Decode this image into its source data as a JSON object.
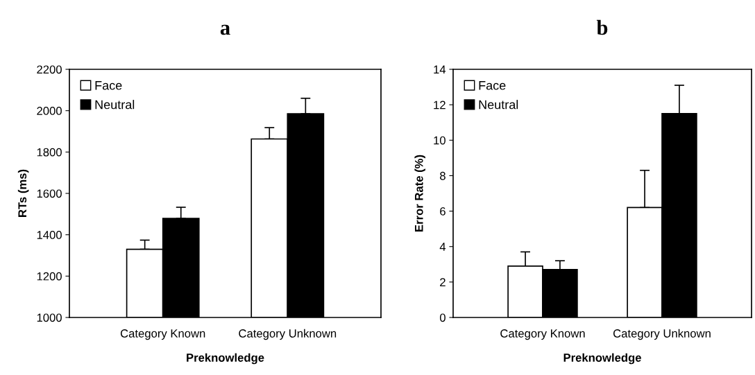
{
  "chart_data": [
    {
      "type": "bar",
      "title": "a",
      "xlabel": "Preknowledge",
      "ylabel": "RTs (ms)",
      "categories": [
        "Category Known",
        "Category Unknown"
      ],
      "series": [
        {
          "name": "Face",
          "color": "#ffffff",
          "values": [
            1330,
            1863
          ],
          "errors": [
            [
              1330,
              1374
            ],
            [
              1863,
              1918
            ]
          ]
        },
        {
          "name": "Neutral",
          "color": "#000000",
          "values": [
            1479,
            1985
          ],
          "errors": [
            [
              1479,
              1533
            ],
            [
              1985,
              2060
            ]
          ]
        }
      ],
      "ylim": [
        1000,
        2200
      ],
      "yticks": [
        1000,
        1200,
        1400,
        1600,
        1800,
        2000,
        2200
      ],
      "grid": false,
      "legend": "top left"
    },
    {
      "type": "bar",
      "title": "b",
      "xlabel": "Preknowledge",
      "ylabel": "Error Rate (%)",
      "categories": [
        "Category Known",
        "Category Unknown"
      ],
      "series": [
        {
          "name": "Face",
          "color": "#ffffff",
          "values": [
            2.9,
            6.2
          ],
          "errors": [
            [
              2.9,
              3.7
            ],
            [
              6.2,
              8.3
            ]
          ]
        },
        {
          "name": "Neutral",
          "color": "#000000",
          "values": [
            2.7,
            11.5
          ],
          "errors": [
            [
              2.7,
              3.2
            ],
            [
              11.5,
              13.1
            ]
          ]
        }
      ],
      "ylim": [
        0,
        14
      ],
      "yticks": [
        0,
        2,
        4,
        6,
        8,
        10,
        12,
        14
      ],
      "grid": false,
      "legend": "top left"
    }
  ]
}
